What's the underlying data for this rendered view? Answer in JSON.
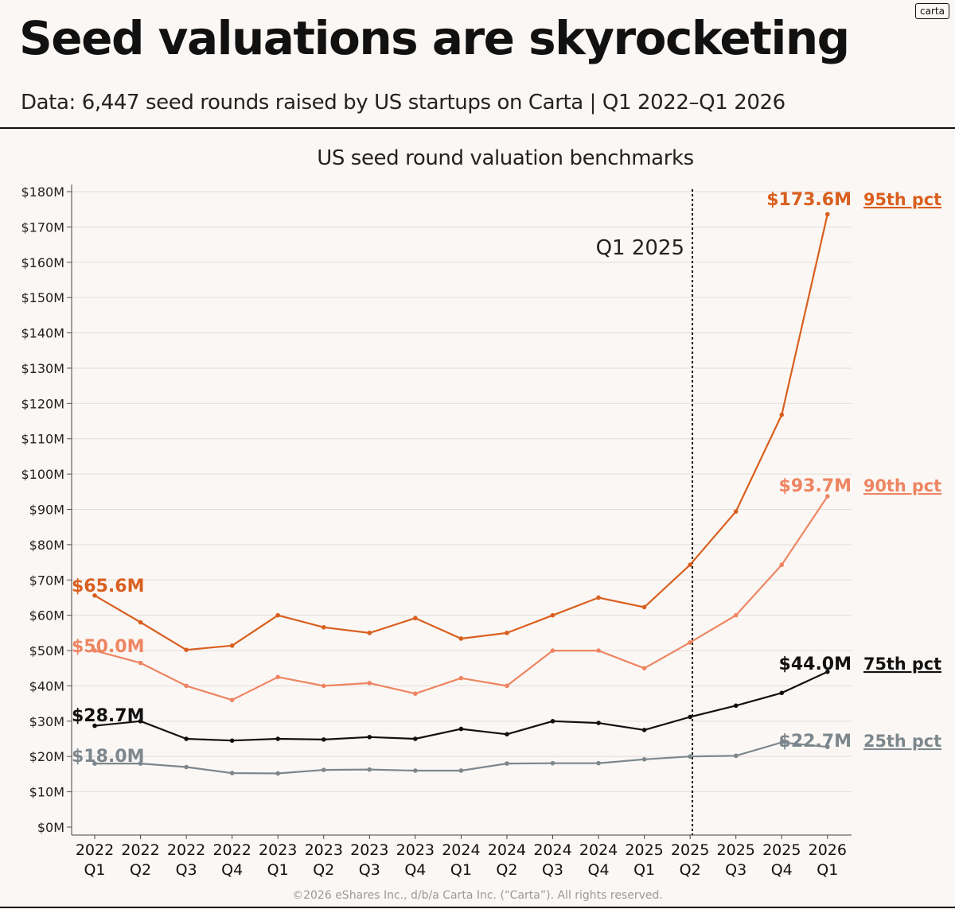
{
  "header": {
    "title": "Seed valuations are skyrocketing",
    "subtitle": "Data: 6,447 seed rounds raised by US startups on Carta | Q1 2022–Q1 2026",
    "brand": "carta"
  },
  "footer": {
    "copyright": "©2026 eShares Inc., d/b/a Carta Inc. (“Carta”). All rights reserved."
  },
  "chart_data": {
    "type": "line",
    "title": "US seed round valuation benchmarks",
    "xlabel": "",
    "ylabel": "",
    "ylim": [
      0,
      180
    ],
    "y_unit": "$M",
    "y_ticks": [
      0,
      10,
      20,
      30,
      40,
      50,
      60,
      70,
      80,
      90,
      100,
      110,
      120,
      130,
      140,
      150,
      160,
      170,
      180
    ],
    "y_tick_labels": [
      "$0M",
      "$10M",
      "$20M",
      "$30M",
      "$40M",
      "$50M",
      "$60M",
      "$70M",
      "$80M",
      "$90M",
      "$100M",
      "$110M",
      "$120M",
      "$130M",
      "$140M",
      "$150M",
      "$160M",
      "$170M",
      "$180M"
    ],
    "grid": true,
    "categories": [
      {
        "year": "2022",
        "quarter": "Q1"
      },
      {
        "year": "2022",
        "quarter": "Q2"
      },
      {
        "year": "2022",
        "quarter": "Q3"
      },
      {
        "year": "2022",
        "quarter": "Q4"
      },
      {
        "year": "2023",
        "quarter": "Q1"
      },
      {
        "year": "2023",
        "quarter": "Q2"
      },
      {
        "year": "2023",
        "quarter": "Q3"
      },
      {
        "year": "2023",
        "quarter": "Q4"
      },
      {
        "year": "2024",
        "quarter": "Q1"
      },
      {
        "year": "2024",
        "quarter": "Q2"
      },
      {
        "year": "2024",
        "quarter": "Q3"
      },
      {
        "year": "2024",
        "quarter": "Q4"
      },
      {
        "year": "2025",
        "quarter": "Q1"
      },
      {
        "year": "2025",
        "quarter": "Q2"
      },
      {
        "year": "2025",
        "quarter": "Q3"
      },
      {
        "year": "2025",
        "quarter": "Q4"
      },
      {
        "year": "2026",
        "quarter": "Q1"
      }
    ],
    "annotation": {
      "label": "Q1 2025",
      "at_category_index": 13.05,
      "style": "dotted"
    },
    "series": [
      {
        "name": "95th pct",
        "color": "#d95f1e",
        "values": [
          65.6,
          58.0,
          50.2,
          51.4,
          60.0,
          56.6,
          55.0,
          59.2,
          53.4,
          55.0,
          60.0,
          65.0,
          62.3,
          74.3,
          89.4,
          116.8,
          173.6
        ],
        "start_label": "$65.6M",
        "end_label": "$173.6M"
      },
      {
        "name": "90th pct",
        "color": "#ee8562",
        "values": [
          50.0,
          46.5,
          40.0,
          36.0,
          42.5,
          40.0,
          40.8,
          37.8,
          42.2,
          40.0,
          50.0,
          50.0,
          45.0,
          52.3,
          60.0,
          74.3,
          93.7
        ],
        "start_label": "$50.0M",
        "end_label": "$93.7M"
      },
      {
        "name": "75th pct",
        "color": "#111111",
        "values": [
          28.7,
          30.0,
          25.0,
          24.5,
          25.0,
          24.8,
          25.5,
          25.0,
          27.8,
          26.3,
          30.0,
          29.5,
          27.5,
          31.2,
          34.4,
          38.0,
          44.0
        ],
        "start_label": "$28.7M",
        "end_label": "$44.0M"
      },
      {
        "name": "25th pct",
        "color": "#7c878d",
        "values": [
          18.0,
          18.0,
          17.0,
          15.3,
          15.2,
          16.2,
          16.3,
          16.0,
          16.0,
          18.0,
          18.1,
          18.1,
          19.2,
          20.0,
          20.2,
          24.0,
          22.7
        ],
        "start_label": "$18.0M",
        "end_label": "$22.7M"
      }
    ]
  }
}
